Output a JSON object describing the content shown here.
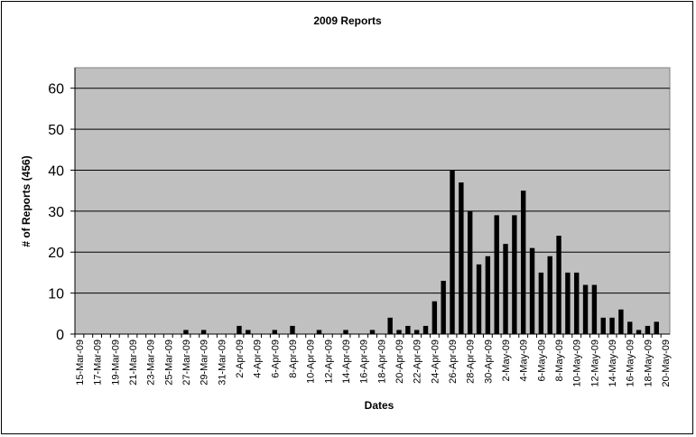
{
  "chart_data": {
    "type": "bar",
    "title": "2009 Reports",
    "x_label": "Dates",
    "y_label": "# of Reports (456)",
    "categories": [
      "15-Mar-09",
      null,
      "17-Mar-09",
      null,
      "19-Mar-09",
      null,
      "21-Mar-09",
      null,
      "23-Mar-09",
      null,
      "25-Mar-09",
      null,
      "27-Mar-09",
      null,
      "29-Mar-09",
      null,
      "31-Mar-09",
      null,
      "2-Apr-09",
      null,
      "4-Apr-09",
      null,
      "6-Apr-09",
      null,
      "8-Apr-09",
      null,
      "10-Apr-09",
      null,
      "12-Apr-09",
      null,
      "14-Apr-09",
      null,
      "16-Apr-09",
      null,
      "18-Apr-09",
      null,
      "20-Apr-09",
      null,
      "22-Apr-09",
      null,
      "24-Apr-09",
      null,
      "26-Apr-09",
      null,
      "28-Apr-09",
      null,
      "30-Apr-09",
      null,
      "2-May-09",
      null,
      "4-May-09",
      null,
      "6-May-09",
      null,
      "8-May-09",
      null,
      "10-May-09",
      null,
      "12-May-09",
      null,
      "14-May-09",
      null,
      "16-May-09",
      null,
      "18-May-09",
      null,
      "20-May-09"
    ],
    "values": [
      0,
      0,
      0,
      0,
      0,
      0,
      0,
      0,
      0,
      0,
      0,
      0,
      1,
      0,
      1,
      0,
      0,
      0,
      2,
      1,
      0,
      0,
      1,
      0,
      2,
      0,
      0,
      1,
      0,
      0,
      1,
      0,
      0,
      1,
      0,
      4,
      1,
      2,
      1,
      2,
      8,
      13,
      40,
      37,
      30,
      17,
      19,
      29,
      22,
      29,
      35,
      21,
      15,
      19,
      24,
      15,
      15,
      12,
      12,
      4,
      4,
      6,
      3,
      1,
      2,
      3,
      0
    ],
    "color": "#000000",
    "plot_background": "#c0c0c0",
    "ylim": [
      0,
      65
    ],
    "yticks": [
      0,
      10,
      20,
      30,
      40,
      50,
      60
    ],
    "grid": true
  }
}
